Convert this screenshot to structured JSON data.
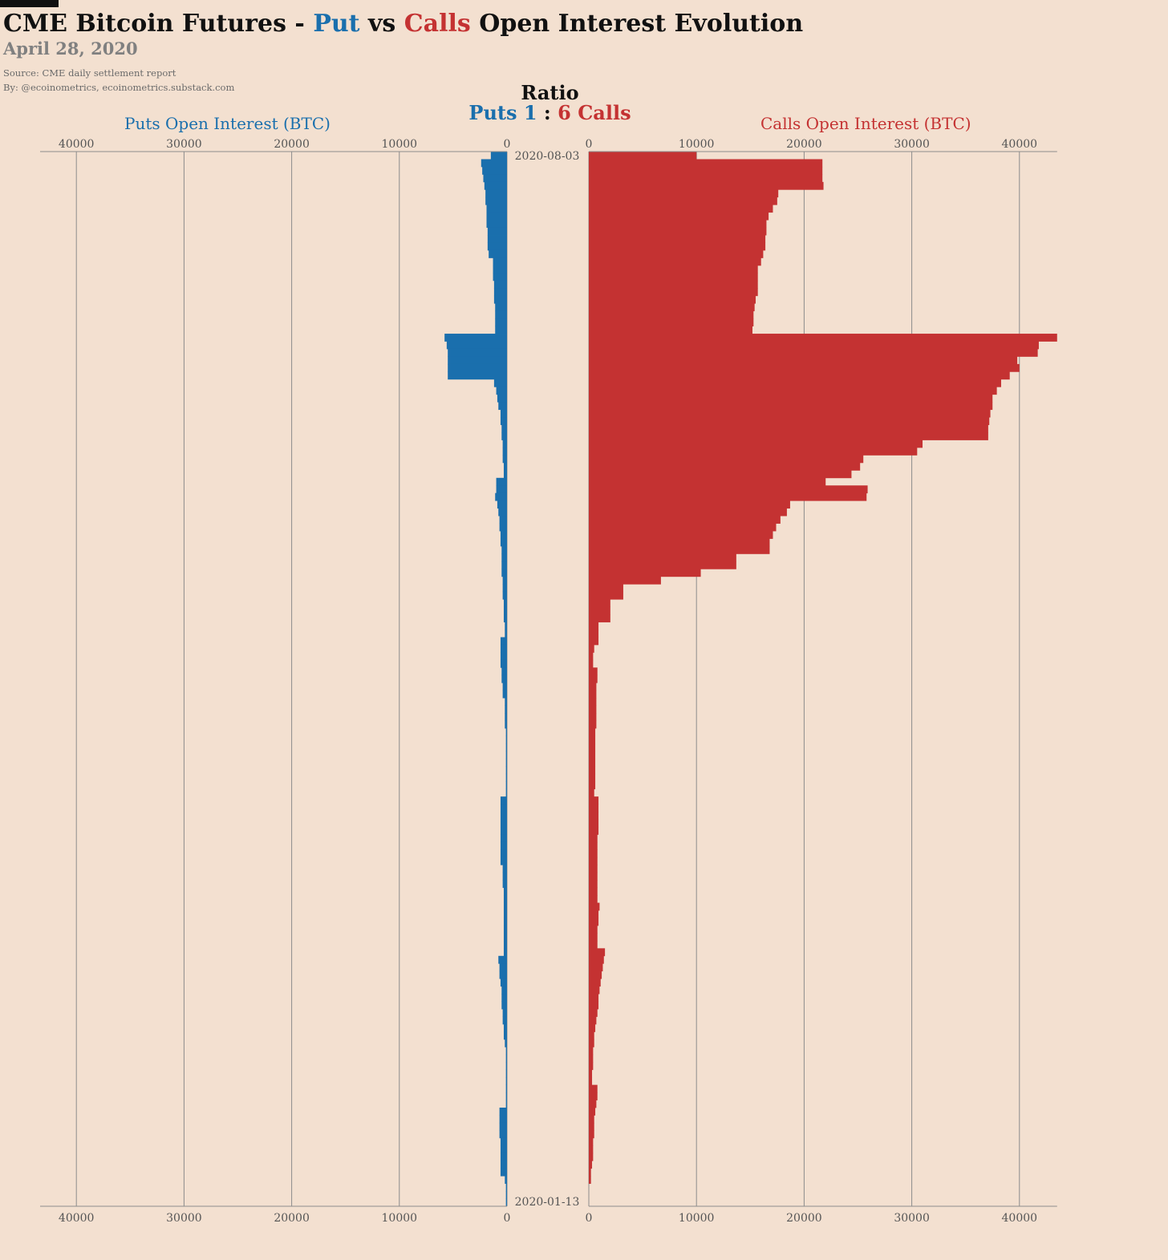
{
  "header": {
    "title_part1": "CME Bitcoin Futures - ",
    "title_put": "Put",
    "title_vs": " vs ",
    "title_calls": "Calls",
    "title_part2": " Open Interest Evolution",
    "date": "April 28, 2020",
    "source": "Source: CME daily settlement report",
    "byline": "By: @ecoinometrics, ecoinometrics.substack.com"
  },
  "ratio": {
    "label": "Ratio",
    "puts_text": "Puts 1",
    "sep": " : ",
    "calls_text": "6 Calls"
  },
  "colors": {
    "puts": "#1a6fad",
    "calls": "#c43232",
    "background": "#f3e0d0",
    "grid": "#8c8c8c"
  },
  "chart_data": {
    "type": "bar",
    "orientation": "horizontal-back-to-back",
    "left_axis_label": "Puts Open Interest (BTC)",
    "right_axis_label": "Calls Open Interest (BTC)",
    "ticks": [
      0,
      10000,
      20000,
      30000,
      40000
    ],
    "xlim": [
      0,
      43500
    ],
    "first_date": "2020-08-03",
    "last_date": "2020-01-13",
    "series": [
      {
        "name": "Puts",
        "values": [
          1500,
          2400,
          2300,
          2200,
          2100,
          2000,
          2000,
          1900,
          1900,
          1900,
          1800,
          1800,
          1800,
          1700,
          1300,
          1300,
          1300,
          1200,
          1200,
          1200,
          1100,
          1100,
          1100,
          1100,
          5800,
          5600,
          5500,
          5500,
          5500,
          5500,
          1200,
          1000,
          900,
          800,
          600,
          600,
          500,
          500,
          400,
          400,
          400,
          300,
          300,
          1000,
          1000,
          1100,
          900,
          800,
          700,
          700,
          600,
          600,
          500,
          500,
          500,
          500,
          400,
          400,
          400,
          300,
          300,
          300,
          200,
          200,
          600,
          600,
          600,
          600,
          500,
          500,
          400,
          400,
          200,
          200,
          200,
          200,
          100,
          100,
          100,
          100,
          100,
          100,
          100,
          100,
          100,
          600,
          600,
          600,
          600,
          600,
          600,
          600,
          600,
          600,
          400,
          400,
          400,
          300,
          300,
          300,
          300,
          300,
          300,
          300,
          300,
          300,
          800,
          700,
          700,
          600,
          500,
          500,
          500,
          400,
          400,
          300,
          300,
          200,
          100,
          100,
          100,
          100,
          100,
          100,
          100,
          100,
          700,
          700,
          700,
          700,
          600,
          600,
          600,
          600,
          600,
          200,
          100,
          100,
          100
        ]
      },
      {
        "name": "Calls",
        "values": [
          10000,
          21700,
          21700,
          21700,
          21800,
          17600,
          17500,
          17100,
          16700,
          16500,
          16500,
          16400,
          16400,
          16200,
          16000,
          15700,
          15700,
          15700,
          15700,
          15500,
          15400,
          15300,
          15300,
          15200,
          43500,
          41800,
          41700,
          39800,
          40000,
          39100,
          38300,
          37900,
          37500,
          37500,
          37300,
          37200,
          37100,
          37100,
          31000,
          30500,
          25500,
          25200,
          24400,
          22000,
          25900,
          25800,
          18700,
          18400,
          17800,
          17400,
          17100,
          16800,
          16800,
          13700,
          13700,
          10400,
          6700,
          3200,
          3200,
          2000,
          2000,
          2000,
          900,
          900,
          900,
          500,
          400,
          400,
          800,
          800,
          700,
          700,
          700,
          700,
          700,
          700,
          600,
          600,
          600,
          600,
          600,
          600,
          600,
          600,
          500,
          900,
          900,
          900,
          900,
          900,
          800,
          800,
          800,
          800,
          800,
          800,
          800,
          800,
          800,
          1000,
          900,
          900,
          800,
          800,
          800,
          1500,
          1400,
          1300,
          1200,
          1100,
          1000,
          900,
          900,
          800,
          700,
          600,
          500,
          500,
          400,
          400,
          400,
          300,
          300,
          800,
          800,
          700,
          600,
          500,
          500,
          500,
          400,
          400,
          400,
          300,
          200,
          200
        ]
      }
    ]
  }
}
